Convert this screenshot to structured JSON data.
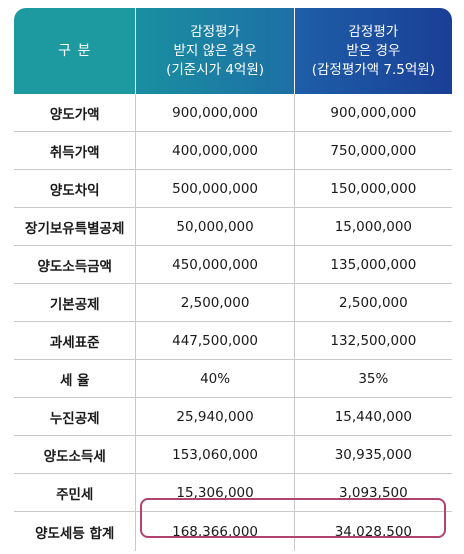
{
  "header": {
    "col0": "구 분",
    "col1": [
      "감정평가",
      "받지 않은 경우",
      "(기준시가 4억원)"
    ],
    "col2": [
      "감정평가",
      "받은 경우",
      "(감정평가액 7.5억원)"
    ]
  },
  "rows": [
    {
      "label": "양도가액",
      "a": "900,000,000",
      "b": "900,000,000"
    },
    {
      "label": "취득가액",
      "a": "400,000,000",
      "b": "750,000,000"
    },
    {
      "label": "양도차익",
      "a": "500,000,000",
      "b": "150,000,000"
    },
    {
      "label": "장기보유특별공제",
      "a": "50,000,000",
      "b": "15,000,000"
    },
    {
      "label": "양도소득금액",
      "a": "450,000,000",
      "b": "135,000,000"
    },
    {
      "label": "기본공제",
      "a": "2,500,000",
      "b": "2,500,000"
    },
    {
      "label": "과세표준",
      "a": "447,500,000",
      "b": "132,500,000"
    },
    {
      "label": "세 율",
      "a": "40%",
      "b": "35%"
    },
    {
      "label": "누진공제",
      "a": "25,940,000",
      "b": "15,440,000"
    },
    {
      "label": "양도소득세",
      "a": "153,060,000",
      "b": "30,935,000"
    },
    {
      "label": "주민세",
      "a": "15,306,000",
      "b": "3,093,500"
    },
    {
      "label": "양도세등 합계",
      "a": "168,366,000",
      "b": "34,028,500"
    }
  ]
}
